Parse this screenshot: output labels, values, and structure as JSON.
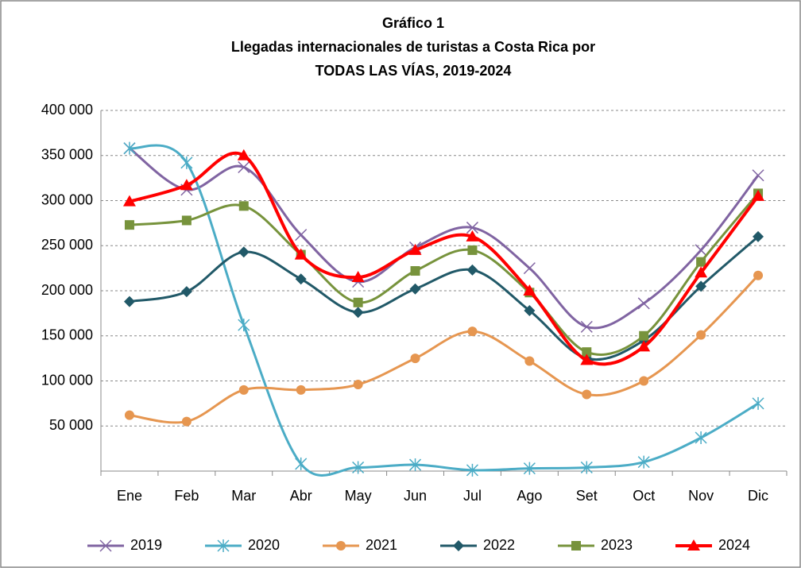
{
  "chart_data": {
    "type": "line",
    "title": [
      "Gráfico 1",
      "Llegadas internacionales de turistas a Costa Rica por",
      "TODAS LAS VÍAS, 2019-2024"
    ],
    "categories": [
      "Ene",
      "Feb",
      "Mar",
      "Abr",
      "May",
      "Jun",
      "Jul",
      "Ago",
      "Set",
      "Oct",
      "Nov",
      "Dic"
    ],
    "ylim": [
      0,
      400000
    ],
    "yticks": [
      {
        "value": 50000,
        "label": "50 000"
      },
      {
        "value": 100000,
        "label": "100 000"
      },
      {
        "value": 150000,
        "label": "150 000"
      },
      {
        "value": 200000,
        "label": "200 000"
      },
      {
        "value": 250000,
        "label": "250 000"
      },
      {
        "value": 300000,
        "label": "300 000"
      },
      {
        "value": 350000,
        "label": "350 000"
      },
      {
        "value": 400000,
        "label": "400 000"
      }
    ],
    "grid": true,
    "smooth": true,
    "legend": "bottom",
    "series": [
      {
        "name": "2019",
        "color": "#8064a2",
        "marker": "x",
        "values": [
          358000,
          312000,
          337000,
          262000,
          210000,
          248000,
          270000,
          225000,
          160000,
          186000,
          245000,
          328000
        ]
      },
      {
        "name": "2020",
        "color": "#4bacc6",
        "marker": "star",
        "values": [
          358000,
          342000,
          162000,
          8000,
          4000,
          7000,
          1000,
          3000,
          4000,
          10000,
          37000,
          75000
        ]
      },
      {
        "name": "2021",
        "color": "#e69650",
        "marker": "circle",
        "values": [
          62000,
          55000,
          90000,
          90000,
          96000,
          125000,
          155000,
          122000,
          85000,
          100000,
          151000,
          217000
        ]
      },
      {
        "name": "2022",
        "color": "#215968",
        "marker": "diamond",
        "values": [
          188000,
          199000,
          243000,
          213000,
          176000,
          202000,
          223000,
          178000,
          125000,
          145000,
          205000,
          260000
        ]
      },
      {
        "name": "2023",
        "color": "#77933c",
        "marker": "square",
        "values": [
          273000,
          278000,
          294000,
          240000,
          187000,
          222000,
          245000,
          198000,
          132000,
          150000,
          232000,
          308000
        ]
      },
      {
        "name": "2024",
        "color": "#ff0000",
        "marker": "triangle",
        "values": [
          299000,
          317000,
          350000,
          240000,
          215000,
          245000,
          260000,
          200000,
          123000,
          138000,
          220000,
          305000
        ]
      }
    ]
  }
}
